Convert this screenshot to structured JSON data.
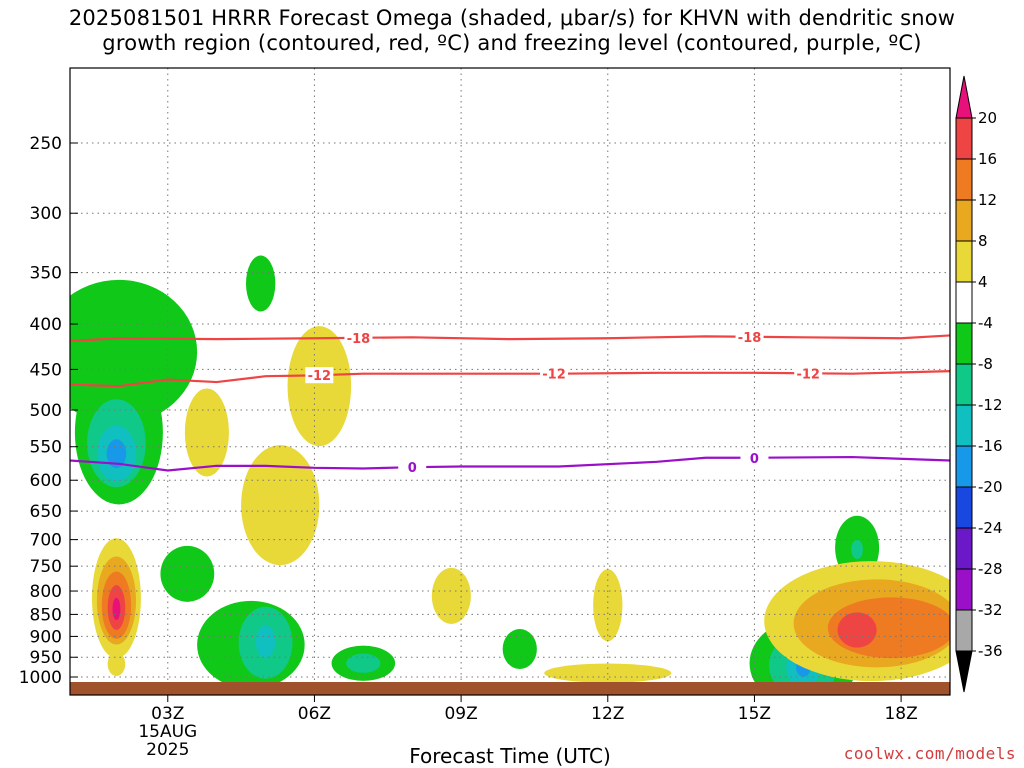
{
  "title_line1": "2025081501 HRRR Forecast Omega (shaded, μbar/s) for KHVN with dendritic snow",
  "title_line2": "growth region (contoured, red, ºC) and freezing level (contoured, purple, ºC)",
  "xlabel": "Forecast Time (UTC)",
  "credit": "coolwx.com/models",
  "colors": {
    "dgz": "#ee4444",
    "freezing": "#9a10c8",
    "ground": "#a0522d"
  },
  "chart_data": {
    "type": "contour",
    "y_axis": {
      "label": "",
      "ticks": [
        250,
        300,
        350,
        400,
        450,
        500,
        550,
        600,
        650,
        700,
        750,
        800,
        850,
        900,
        950,
        1000
      ],
      "units": "hPa",
      "inverted": true
    },
    "x_axis": {
      "ticks": [
        "03Z",
        "06Z",
        "09Z",
        "12Z",
        "15Z",
        "18Z"
      ],
      "tick_hours": [
        3,
        6,
        9,
        12,
        15,
        18
      ],
      "first_tick_date": [
        "15AUG",
        "2025"
      ],
      "range_hours": [
        1,
        19
      ]
    },
    "grid": true,
    "colorbar": {
      "labels": [
        "20",
        "16",
        "12",
        "8",
        "4",
        "-4",
        "-8",
        "-12",
        "-16",
        "-20",
        "-24",
        "-28",
        "-32",
        "-36"
      ],
      "bins": [
        {
          "color": "#e8107a"
        },
        {
          "color": "#ee4444"
        },
        {
          "color": "#ee7a22"
        },
        {
          "color": "#e8a820"
        },
        {
          "color": "#e8d838"
        },
        {
          "color": "#ffffff"
        },
        {
          "color": "#10c818"
        },
        {
          "color": "#10c888"
        },
        {
          "color": "#10c0c0"
        },
        {
          "color": "#1898e8"
        },
        {
          "color": "#1848e0"
        },
        {
          "color": "#6a18c8"
        },
        {
          "color": "#9a10c8"
        },
        {
          "color": "#a8a8a8"
        },
        {
          "color": "#000000"
        }
      ]
    },
    "contour_lines": [
      {
        "label": "-18",
        "color": "#ee4444",
        "points": [
          [
            1,
            418
          ],
          [
            2,
            415
          ],
          [
            4,
            416
          ],
          [
            6,
            415
          ],
          [
            8,
            414
          ],
          [
            10,
            416
          ],
          [
            12,
            415
          ],
          [
            14,
            413
          ],
          [
            16,
            414
          ],
          [
            18,
            415
          ],
          [
            19,
            412
          ]
        ],
        "label_hours": [
          6.9,
          14.9
        ]
      },
      {
        "label": "-12",
        "color": "#ee4444",
        "points": [
          [
            1,
            468
          ],
          [
            2,
            470
          ],
          [
            3,
            462
          ],
          [
            4,
            465
          ],
          [
            5,
            458
          ],
          [
            6,
            457
          ],
          [
            7,
            455
          ],
          [
            9,
            455
          ],
          [
            11,
            455
          ],
          [
            13,
            454
          ],
          [
            15,
            454
          ],
          [
            17,
            455
          ],
          [
            19,
            452
          ]
        ],
        "label_hours": [
          6.1,
          10.9,
          16.1
        ]
      },
      {
        "label": "0",
        "color": "#9a10c8",
        "points": [
          [
            1,
            570
          ],
          [
            2,
            575
          ],
          [
            3,
            585
          ],
          [
            4,
            578
          ],
          [
            5,
            578
          ],
          [
            6,
            581
          ],
          [
            7,
            582
          ],
          [
            8,
            580
          ],
          [
            9,
            579
          ],
          [
            11,
            579
          ],
          [
            13,
            572
          ],
          [
            14,
            566
          ],
          [
            15,
            566
          ],
          [
            17,
            565
          ],
          [
            19,
            570
          ]
        ],
        "label_hours": [
          8.0,
          15.0
        ]
      }
    ],
    "shaded_regions": [
      {
        "value": -6,
        "center": [
          2.0,
          430
        ],
        "radius": [
          1.6,
          0.9
        ]
      },
      {
        "value": -6,
        "center": [
          2.0,
          530
        ],
        "radius": [
          0.9,
          0.9
        ]
      },
      {
        "value": -10,
        "center": [
          1.95,
          545
        ],
        "radius": [
          0.6,
          0.55
        ]
      },
      {
        "value": -14,
        "center": [
          1.95,
          560
        ],
        "radius": [
          0.4,
          0.35
        ]
      },
      {
        "value": -18,
        "center": [
          1.95,
          560
        ],
        "radius": [
          0.2,
          0.18
        ]
      },
      {
        "value": -6,
        "center": [
          4.9,
          360
        ],
        "radius": [
          0.3,
          0.35
        ]
      },
      {
        "value": -6,
        "center": [
          3.4,
          765
        ],
        "radius": [
          0.55,
          0.35
        ]
      },
      {
        "value": 6,
        "center": [
          3.8,
          530
        ],
        "radius": [
          0.45,
          0.55
        ]
      },
      {
        "value": 6,
        "center": [
          6.1,
          470
        ],
        "radius": [
          0.65,
          0.75
        ]
      },
      {
        "value": 6,
        "center": [
          5.3,
          640
        ],
        "radius": [
          0.8,
          0.75
        ]
      },
      {
        "value": 6,
        "center": [
          1.95,
          815
        ],
        "radius": [
          0.5,
          0.75
        ]
      },
      {
        "value": 10,
        "center": [
          1.95,
          820
        ],
        "radius": [
          0.4,
          0.55
        ]
      },
      {
        "value": 14,
        "center": [
          1.95,
          830
        ],
        "radius": [
          0.3,
          0.42
        ]
      },
      {
        "value": 18,
        "center": [
          1.95,
          835
        ],
        "radius": [
          0.18,
          0.28
        ]
      },
      {
        "value": 22,
        "center": [
          1.95,
          838
        ],
        "radius": [
          0.08,
          0.14
        ]
      },
      {
        "value": 6,
        "center": [
          1.95,
          967
        ],
        "radius": [
          0.18,
          0.15
        ]
      },
      {
        "value": -6,
        "center": [
          4.7,
          920
        ],
        "radius": [
          1.1,
          0.55
        ]
      },
      {
        "value": -10,
        "center": [
          5.0,
          915
        ],
        "radius": [
          0.55,
          0.45
        ]
      },
      {
        "value": -14,
        "center": [
          5.0,
          912
        ],
        "radius": [
          0.2,
          0.2
        ]
      },
      {
        "value": -6,
        "center": [
          7.0,
          965
        ],
        "radius": [
          0.65,
          0.22
        ]
      },
      {
        "value": -10,
        "center": [
          7.0,
          965
        ],
        "radius": [
          0.35,
          0.12
        ]
      },
      {
        "value": 6,
        "center": [
          8.8,
          810
        ],
        "radius": [
          0.4,
          0.35
        ]
      },
      {
        "value": -6,
        "center": [
          10.2,
          930
        ],
        "radius": [
          0.35,
          0.25
        ]
      },
      {
        "value": 6,
        "center": [
          12.0,
          830
        ],
        "radius": [
          0.3,
          0.45
        ]
      },
      {
        "value": 6,
        "center": [
          12.0,
          990
        ],
        "radius": [
          1.3,
          0.12
        ]
      },
      {
        "value": -6,
        "center": [
          16.0,
          965
        ],
        "radius": [
          1.1,
          0.55
        ]
      },
      {
        "value": -10,
        "center": [
          16.0,
          970
        ],
        "radius": [
          0.7,
          0.4
        ]
      },
      {
        "value": -14,
        "center": [
          16.0,
          975
        ],
        "radius": [
          0.35,
          0.25
        ]
      },
      {
        "value": -18,
        "center": [
          16.0,
          975
        ],
        "radius": [
          0.15,
          0.12
        ]
      },
      {
        "value": -6,
        "center": [
          17.1,
          715
        ],
        "radius": [
          0.45,
          0.4
        ]
      },
      {
        "value": -10,
        "center": [
          17.1,
          718
        ],
        "radius": [
          0.12,
          0.12
        ]
      },
      {
        "value": 6,
        "center": [
          17.4,
          865
        ],
        "radius": [
          2.2,
          0.75
        ]
      },
      {
        "value": 10,
        "center": [
          17.5,
          870
        ],
        "radius": [
          1.7,
          0.55
        ]
      },
      {
        "value": 14,
        "center": [
          17.8,
          880
        ],
        "radius": [
          1.3,
          0.38
        ]
      },
      {
        "value": 18,
        "center": [
          17.1,
          885
        ],
        "radius": [
          0.4,
          0.22
        ]
      }
    ]
  }
}
